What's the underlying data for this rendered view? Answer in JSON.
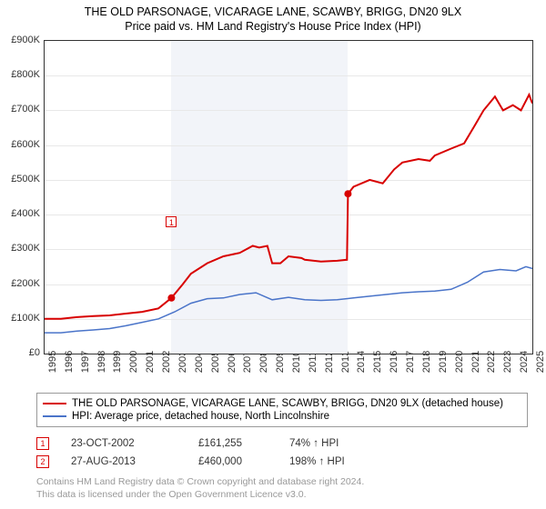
{
  "title_line1": "THE OLD PARSONAGE, VICARAGE LANE, SCAWBY, BRIGG, DN20 9LX",
  "title_line2": "Price paid vs. HM Land Registry's House Price Index (HPI)",
  "chart": {
    "type": "line",
    "background_color": "#ffffff",
    "grid_color": "#e8e8e8",
    "shaded_band_color": "#f2f4f9",
    "shaded_start_year": 2002.8,
    "shaded_end_year": 2013.65,
    "ylim": [
      0,
      900
    ],
    "ytick_step": 100,
    "ytick_prefix": "£",
    "ytick_suffix": "K",
    "x_years": [
      1995,
      1996,
      1997,
      1998,
      1999,
      2000,
      2001,
      2002,
      2003,
      2004,
      2005,
      2006,
      2007,
      2008,
      2009,
      2010,
      2011,
      2012,
      2013,
      2014,
      2015,
      2016,
      2017,
      2018,
      2019,
      2020,
      2021,
      2022,
      2023,
      2024,
      2025
    ],
    "xlim": [
      1995,
      2025
    ],
    "series": [
      {
        "name": "THE OLD PARSONAGE, VICARAGE LANE, SCAWBY, BRIGG, DN20 9LX (detached house)",
        "color": "#d80000",
        "line_width": 2,
        "points": [
          [
            1995,
            100
          ],
          [
            1996,
            100
          ],
          [
            1997,
            105
          ],
          [
            1998,
            108
          ],
          [
            1999,
            110
          ],
          [
            2000,
            115
          ],
          [
            2001,
            120
          ],
          [
            2002,
            130
          ],
          [
            2002.8,
            160
          ],
          [
            2003.5,
            200
          ],
          [
            2004,
            230
          ],
          [
            2005,
            260
          ],
          [
            2006,
            280
          ],
          [
            2007,
            290
          ],
          [
            2007.8,
            310
          ],
          [
            2008.2,
            305
          ],
          [
            2008.7,
            310
          ],
          [
            2009,
            260
          ],
          [
            2009.5,
            260
          ],
          [
            2010,
            280
          ],
          [
            2010.8,
            275
          ],
          [
            2011,
            270
          ],
          [
            2012,
            265
          ],
          [
            2013,
            267
          ],
          [
            2013.6,
            270
          ],
          [
            2013.66,
            460
          ],
          [
            2014,
            480
          ],
          [
            2015,
            500
          ],
          [
            2015.8,
            490
          ],
          [
            2016.5,
            530
          ],
          [
            2017,
            550
          ],
          [
            2018,
            560
          ],
          [
            2018.7,
            555
          ],
          [
            2019,
            570
          ],
          [
            2020,
            590
          ],
          [
            2020.8,
            605
          ],
          [
            2021.5,
            660
          ],
          [
            2022,
            700
          ],
          [
            2022.7,
            740
          ],
          [
            2023.2,
            700
          ],
          [
            2023.8,
            715
          ],
          [
            2024.3,
            700
          ],
          [
            2024.8,
            745
          ],
          [
            2025,
            720
          ]
        ]
      },
      {
        "name": "HPI: Average price, detached house, North Lincolnshire",
        "color": "#4a74c9",
        "line_width": 1.5,
        "points": [
          [
            1995,
            60
          ],
          [
            1996,
            60
          ],
          [
            1997,
            65
          ],
          [
            1998,
            68
          ],
          [
            1999,
            72
          ],
          [
            2000,
            80
          ],
          [
            2001,
            90
          ],
          [
            2002,
            100
          ],
          [
            2003,
            120
          ],
          [
            2004,
            145
          ],
          [
            2005,
            158
          ],
          [
            2006,
            160
          ],
          [
            2007,
            170
          ],
          [
            2008,
            175
          ],
          [
            2009,
            155
          ],
          [
            2010,
            162
          ],
          [
            2011,
            155
          ],
          [
            2012,
            153
          ],
          [
            2013,
            155
          ],
          [
            2014,
            160
          ],
          [
            2015,
            165
          ],
          [
            2016,
            170
          ],
          [
            2017,
            175
          ],
          [
            2018,
            178
          ],
          [
            2019,
            180
          ],
          [
            2020,
            185
          ],
          [
            2021,
            205
          ],
          [
            2022,
            235
          ],
          [
            2023,
            242
          ],
          [
            2024,
            238
          ],
          [
            2024.6,
            250
          ],
          [
            2025,
            245
          ]
        ]
      }
    ],
    "markers": [
      {
        "id": "1",
        "year": 2002.8,
        "value": 160,
        "label_y_offset": -90,
        "dot_show": true
      },
      {
        "id": "2",
        "year": 2013.66,
        "value": 460,
        "label_y_offset": -380,
        "dot_show": true
      }
    ],
    "marker_border_color": "#d80000",
    "marker_text_color": "#d80000",
    "marker_dot_color": "#d80000",
    "marker_dot_radius": 4
  },
  "legend": [
    "THE OLD PARSONAGE, VICARAGE LANE, SCAWBY, BRIGG, DN20 9LX (detached house)",
    "HPI: Average price, detached house, North Lincolnshire"
  ],
  "events": [
    {
      "n": "1",
      "date": "23-OCT-2002",
      "price": "£161,255",
      "rel": "74% ↑ HPI"
    },
    {
      "n": "2",
      "date": "27-AUG-2013",
      "price": "£460,000",
      "rel": "198% ↑ HPI"
    }
  ],
  "footer": [
    "Contains HM Land Registry data © Crown copyright and database right 2024.",
    "This data is licensed under the Open Government Licence v3.0."
  ]
}
